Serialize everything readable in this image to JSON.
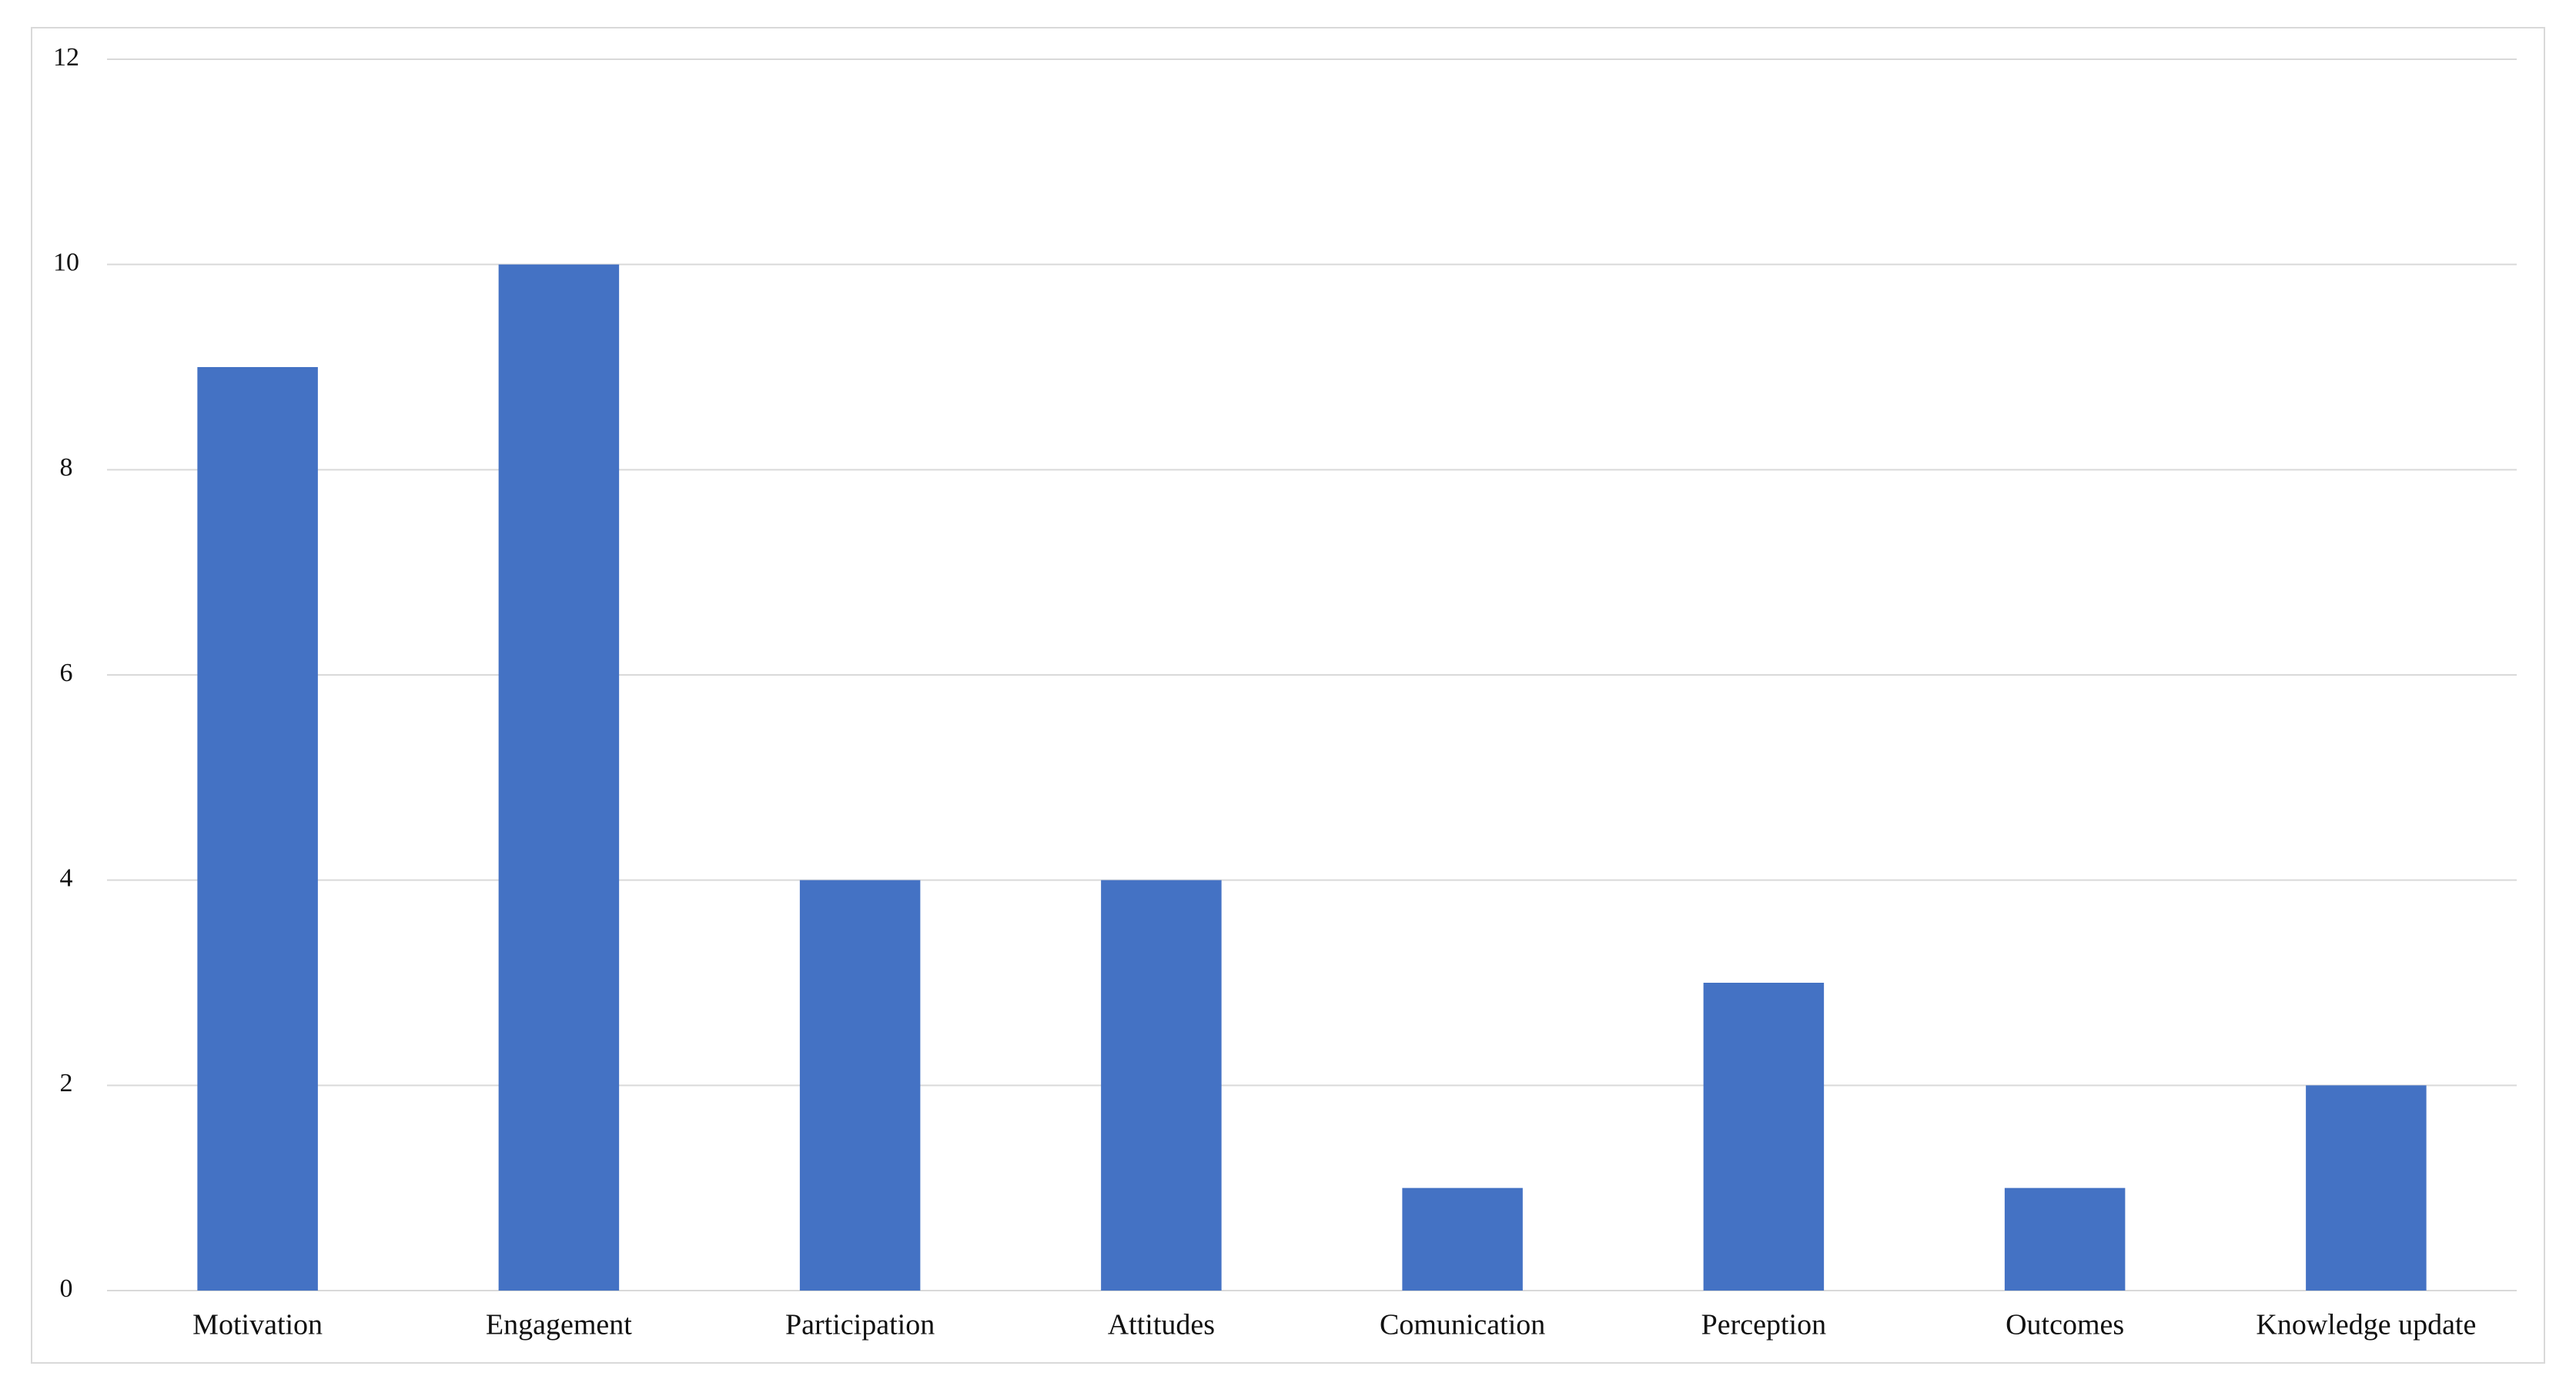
{
  "chart_data": {
    "type": "bar",
    "categories": [
      "Motivation",
      "Engagement",
      "Participation",
      "Attitudes",
      "Comunication",
      "Perception",
      "Outcomes",
      "Knowledge update"
    ],
    "values": [
      9,
      10,
      4,
      4,
      1,
      3,
      1,
      2
    ],
    "color": "#4472c4",
    "ylim": [
      0,
      12
    ],
    "yticks": [
      0,
      2,
      4,
      6,
      8,
      10,
      12
    ],
    "grid": true
  }
}
